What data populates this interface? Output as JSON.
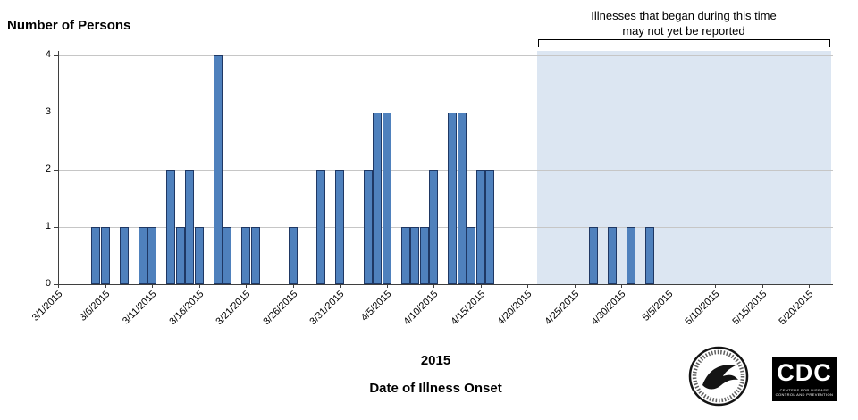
{
  "chart_data": {
    "type": "bar",
    "title": "",
    "ylabel": "Number of Persons",
    "xlabel": "Date of Illness Onset",
    "x_year_label": "2015",
    "ylim": [
      0,
      4
    ],
    "y_ticks": [
      "0",
      "1",
      "2",
      "3",
      "4"
    ],
    "x_tick_labels": [
      "3/1/2015",
      "3/6/2015",
      "3/11/2015",
      "3/16/2015",
      "3/21/2015",
      "3/26/2015",
      "3/31/2015",
      "4/5/2015",
      "4/10/2015",
      "4/15/2015",
      "4/20/2015",
      "4/25/2015",
      "4/30/2015",
      "5/5/2015",
      "5/10/2015",
      "5/15/2015",
      "5/20/2015"
    ],
    "bars": [
      {
        "date": "3/5/2015",
        "count": 1
      },
      {
        "date": "3/6/2015",
        "count": 1
      },
      {
        "date": "3/8/2015",
        "count": 1
      },
      {
        "date": "3/10/2015",
        "count": 1
      },
      {
        "date": "3/11/2015",
        "count": 1
      },
      {
        "date": "3/13/2015",
        "count": 2
      },
      {
        "date": "3/14/2015",
        "count": 1
      },
      {
        "date": "3/15/2015",
        "count": 2
      },
      {
        "date": "3/16/2015",
        "count": 1
      },
      {
        "date": "3/18/2015",
        "count": 4
      },
      {
        "date": "3/19/2015",
        "count": 1
      },
      {
        "date": "3/21/2015",
        "count": 1
      },
      {
        "date": "3/22/2015",
        "count": 1
      },
      {
        "date": "3/26/2015",
        "count": 1
      },
      {
        "date": "3/29/2015",
        "count": 2
      },
      {
        "date": "3/31/2015",
        "count": 2
      },
      {
        "date": "4/3/2015",
        "count": 2
      },
      {
        "date": "4/4/2015",
        "count": 3
      },
      {
        "date": "4/5/2015",
        "count": 3
      },
      {
        "date": "4/7/2015",
        "count": 1
      },
      {
        "date": "4/8/2015",
        "count": 1
      },
      {
        "date": "4/9/2015",
        "count": 1
      },
      {
        "date": "4/10/2015",
        "count": 2
      },
      {
        "date": "4/12/2015",
        "count": 3
      },
      {
        "date": "4/13/2015",
        "count": 3
      },
      {
        "date": "4/14/2015",
        "count": 1
      },
      {
        "date": "4/15/2015",
        "count": 2
      },
      {
        "date": "4/16/2015",
        "count": 2
      },
      {
        "date": "4/27/2015",
        "count": 1
      },
      {
        "date": "4/29/2015",
        "count": 1
      },
      {
        "date": "5/1/2015",
        "count": 1
      },
      {
        "date": "5/3/2015",
        "count": 1
      }
    ],
    "annotation": {
      "line1": "Illnesses that began during this time",
      "line2": "may not yet be reported"
    },
    "shaded_region": {
      "start_date": "4/21/2015"
    },
    "colors": {
      "bar_fill": "#4f81bd",
      "bar_border": "#1f3864",
      "gridline": "#c6c6c6",
      "axis": "#3f3f3f",
      "shaded": "#dce6f2"
    },
    "legend": "none",
    "grid": "horizontal"
  },
  "logos": {
    "cdc_text": "CDC",
    "cdc_subtext": "CENTERS FOR DISEASE CONTROL AND PREVENTION"
  }
}
